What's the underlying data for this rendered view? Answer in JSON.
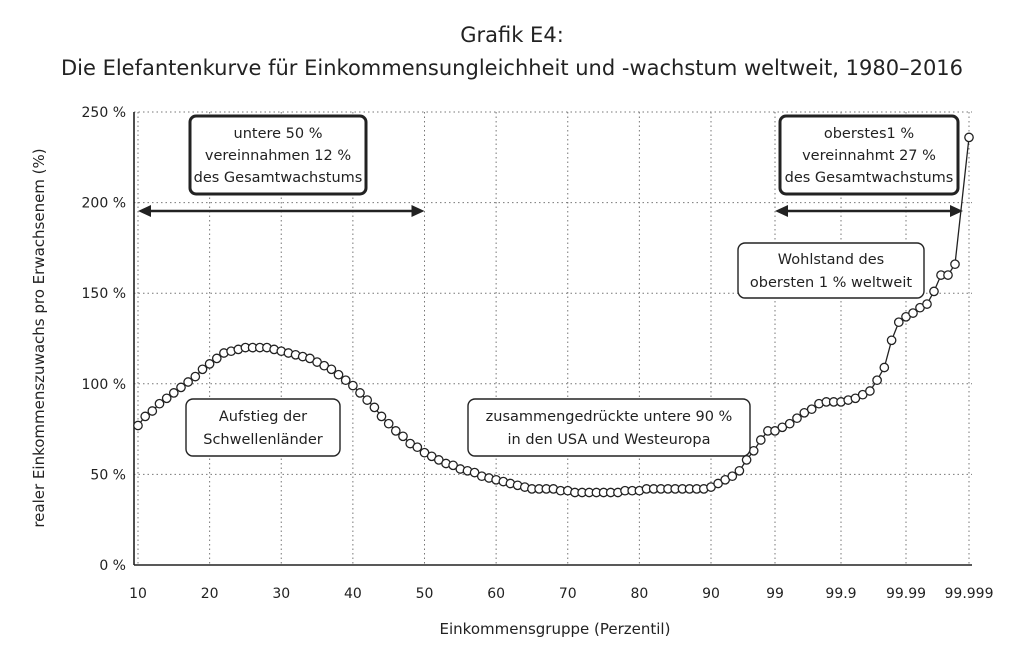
{
  "chart_data": {
    "type": "line",
    "title": "Grafik E4:",
    "subtitle": "Die Elefantenkurve für Einkommensungleichheit und -wachstum weltweit, 1980–2016",
    "xlabel": "Einkommensgruppe (Perzentil)",
    "ylabel": "realer Einkommenszuwachs pro Erwachsenem (%)",
    "ylim": [
      0,
      250
    ],
    "y_ticks": [
      "0 %",
      "50 %",
      "100 %",
      "150 %",
      "200 %",
      "250 %"
    ],
    "y_tick_values": [
      0,
      50,
      100,
      150,
      200,
      250
    ],
    "x_ticks": [
      "10",
      "20",
      "30",
      "40",
      "50",
      "60",
      "70",
      "80",
      "90",
      "99",
      "99.9",
      "99.99",
      "99.999"
    ],
    "grid": true,
    "x_scale": "percentile, linear from 10 to 90, then equal spacing per extra 9 (99, 99.9, 99.99, 99.999)",
    "series": [
      {
        "values_main": {
          "x_start": 10,
          "x_step": 1,
          "y": [
            77,
            82,
            85,
            89,
            92,
            95,
            98,
            101,
            104,
            108,
            111,
            114,
            117,
            118,
            119,
            120,
            120,
            120,
            120,
            119,
            118,
            117,
            116,
            115,
            114,
            112,
            110,
            108,
            105,
            102,
            99,
            95,
            91,
            87,
            82,
            78,
            74,
            71,
            67,
            65,
            62,
            60,
            58,
            56,
            55,
            53,
            52,
            51,
            49,
            48,
            47,
            46,
            45,
            44,
            43,
            42,
            42,
            42,
            42,
            41,
            41,
            40,
            40,
            40,
            40,
            40,
            40,
            40,
            41,
            41,
            41,
            42,
            42,
            42,
            42,
            42,
            42,
            42,
            42,
            42,
            43,
            45,
            47,
            49,
            52,
            58
          ]
        },
        "values_top": [
          {
            "x": 96,
            "y": 63
          },
          {
            "x": 97,
            "y": 69
          },
          {
            "x": 98,
            "y": 74
          },
          {
            "x": 99,
            "y": 74
          },
          {
            "x": 99.1,
            "y": 76
          },
          {
            "x": 99.2,
            "y": 78
          },
          {
            "x": 99.3,
            "y": 81
          },
          {
            "x": 99.4,
            "y": 84
          },
          {
            "x": 99.5,
            "y": 86
          },
          {
            "x": 99.6,
            "y": 89
          },
          {
            "x": 99.7,
            "y": 90
          },
          {
            "x": 99.8,
            "y": 90
          },
          {
            "x": 99.9,
            "y": 90
          },
          {
            "x": 99.91,
            "y": 91
          },
          {
            "x": 99.92,
            "y": 92
          },
          {
            "x": 99.93,
            "y": 94
          },
          {
            "x": 99.94,
            "y": 96
          },
          {
            "x": 99.95,
            "y": 102
          },
          {
            "x": 99.96,
            "y": 109
          },
          {
            "x": 99.97,
            "y": 124
          },
          {
            "x": 99.98,
            "y": 134
          },
          {
            "x": 99.99,
            "y": 137
          },
          {
            "x": 99.991,
            "y": 139
          },
          {
            "x": 99.992,
            "y": 142
          },
          {
            "x": 99.993,
            "y": 144
          },
          {
            "x": 99.994,
            "y": 151
          },
          {
            "x": 99.995,
            "y": 160
          },
          {
            "x": 99.996,
            "y": 160
          },
          {
            "x": 99.997,
            "y": 166
          },
          {
            "x": 99.999,
            "y": 236
          }
        ]
      }
    ],
    "annotations": [
      {
        "lines": [
          "untere 50 %",
          "vereinnahmen 12 %",
          "des Gesamtwachstums"
        ],
        "style": "bold-box"
      },
      {
        "lines": [
          "oberstes1 %",
          "vereinnahmt 27 %",
          "des Gesamtwachstums"
        ],
        "style": "bold-box"
      },
      {
        "lines": [
          "Wohlstand des",
          "obersten 1 % weltweit"
        ],
        "style": "box"
      },
      {
        "lines": [
          "Aufstieg der",
          "Schwellenländer"
        ],
        "style": "box"
      },
      {
        "lines": [
          "zusammengedrückte untere 90 %",
          "in den USA und Westeuropa"
        ],
        "style": "box"
      }
    ],
    "arrows": [
      {
        "from": 10,
        "to": 50
      },
      {
        "from": 99,
        "to": 99.999
      }
    ]
  }
}
